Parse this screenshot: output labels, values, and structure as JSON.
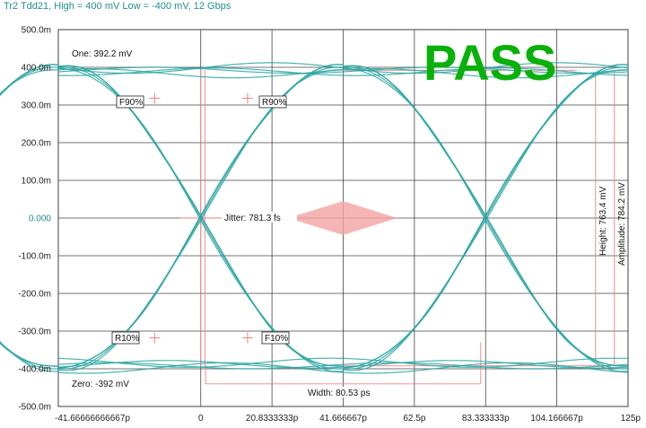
{
  "chart_data": {
    "type": "eye-diagram",
    "title": "Tr2 Tdd21, High = 400 mV Low = -400 mV, 12 Gbps",
    "status": "PASS",
    "status_color": "#0ab10a",
    "trace_color": "#2aa6a2",
    "marker_color": "#f08080",
    "x_ticks": [
      "-41.66666666667p",
      "0",
      "20.8333333p",
      "41.666667p",
      "62.5p",
      "83.333333p",
      "104.166667p",
      "125p"
    ],
    "x_tick_values_ps": [
      -41.6667,
      0,
      20.8333,
      41.6667,
      62.5,
      83.3333,
      104.1667,
      125
    ],
    "y_ticks": [
      "500.0m",
      "400.0m",
      "300.0m",
      "200.0m",
      "100.0m",
      "0.000",
      "-100.0m",
      "-200.0m",
      "-300.0m",
      "-400.0m",
      "-500.0m"
    ],
    "y_tick_values_mv": [
      500,
      400,
      300,
      200,
      100,
      0,
      -100,
      -200,
      -300,
      -400,
      -500
    ],
    "xlim_ps": [
      -41.6667,
      125
    ],
    "ylim_mv": [
      -500,
      500
    ],
    "grid": true,
    "unit_interval_ps": 83.3333,
    "crossings_ps": [
      0,
      83.3333
    ],
    "one_level_mv": 392.2,
    "zero_level_mv": -392,
    "levels_mv": {
      "rise_low": -400,
      "rise_high": 400
    },
    "annotations": {
      "one": "One: 392.2 mV",
      "zero": "Zero: -392 mV",
      "jitter": "Jitter: 781.3 fs",
      "width": "Width: 80.53 ps",
      "height": "Height: 763.4 mV",
      "amplitude": "Amplitude: 784.2 mV",
      "f90": "F90%",
      "r90": "R90%",
      "r10": "R10%",
      "f10": "F10%"
    },
    "annotation_values": {
      "one_mv": 392.2,
      "zero_mv": -392,
      "jitter_fs": 781.3,
      "width_ps": 80.53,
      "height_mv": 763.4,
      "amplitude_mv": 784.2
    }
  }
}
